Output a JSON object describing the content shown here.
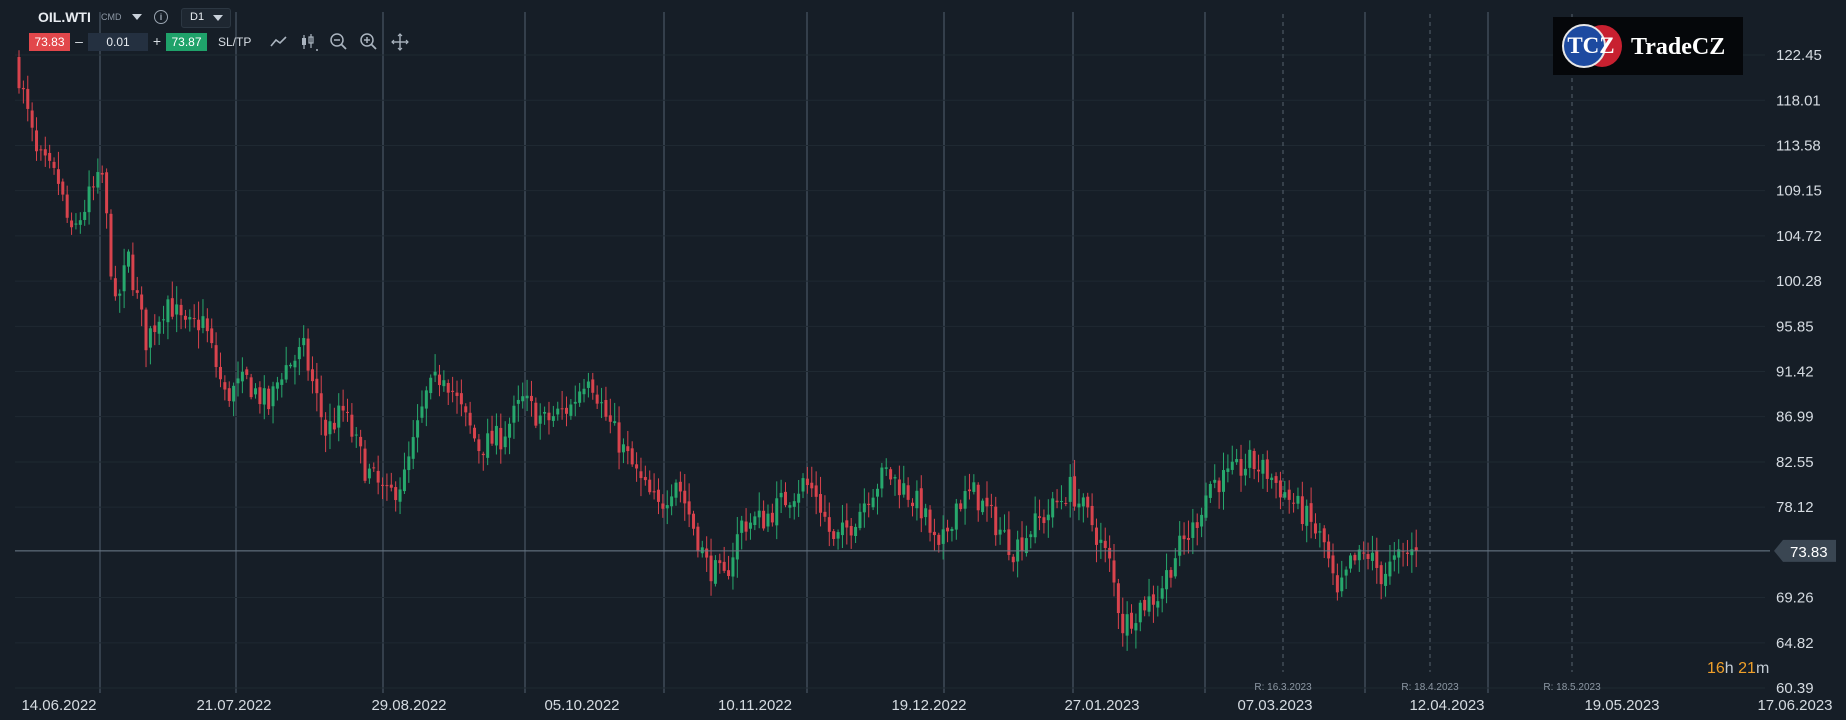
{
  "toolbar": {
    "symbol": "OIL.WTI",
    "symbol_type": "CMD",
    "timeframe": "D1",
    "sell_price": "73.83",
    "buy_price": "73.87",
    "volume": "0.01",
    "minus": "–",
    "plus": "+",
    "sltp_label": "SL/TP",
    "info_label": "i",
    "tools": [
      "line-chart-icon",
      "candles-icon",
      "zoom-out-icon",
      "zoom-in-icon",
      "crosshair-icon"
    ]
  },
  "logo": {
    "tcz": "TCZ",
    "name": "TradeCZ"
  },
  "timer": {
    "hours": "16",
    "h": "h",
    "minutes": "21",
    "m": "m"
  },
  "colors": {
    "background": "#161e27",
    "up": "#27a86d",
    "down": "#d8434d",
    "grid": "#2c3742",
    "price_line": "#6e7e8c"
  },
  "chart_data": {
    "type": "candlestick",
    "y_ticks": [
      "122.45",
      "118.01",
      "113.58",
      "109.15",
      "104.72",
      "100.28",
      "95.85",
      "91.42",
      "86.99",
      "82.55",
      "78.12",
      "73.83",
      "69.26",
      "64.82",
      "60.39"
    ],
    "ylim": [
      60.39,
      122.45
    ],
    "x_labels": [
      "14.06.2022",
      "21.07.2022",
      "29.08.2022",
      "05.10.2022",
      "10.11.2022",
      "19.12.2022",
      "27.01.2023",
      "07.03.2023",
      "12.04.2023",
      "19.05.2023",
      "17.06.2023"
    ],
    "current_price": "73.83",
    "rollover_markers": [
      "R: 16.3.2023",
      "R: 18.4.2023",
      "R: 18.5.2023"
    ],
    "price_path": [
      [
        0,
        120.5
      ],
      [
        4,
        112.5
      ],
      [
        9,
        110.0
      ],
      [
        12,
        104.5
      ],
      [
        16,
        108.5
      ],
      [
        19,
        110.5
      ],
      [
        22,
        97.5
      ],
      [
        25,
        102.5
      ],
      [
        29,
        94.5
      ],
      [
        34,
        98.5
      ],
      [
        38,
        95.5
      ],
      [
        42,
        96.5
      ],
      [
        47,
        89.0
      ],
      [
        52,
        90.5
      ],
      [
        57,
        88.0
      ],
      [
        60,
        91.5
      ],
      [
        65,
        93.5
      ],
      [
        70,
        85.5
      ],
      [
        74,
        87.5
      ],
      [
        79,
        82.0
      ],
      [
        84,
        79.0
      ],
      [
        88,
        81.0
      ],
      [
        93,
        89.0
      ],
      [
        97,
        91.5
      ],
      [
        101,
        87.5
      ],
      [
        105,
        84.0
      ],
      [
        110,
        85.0
      ],
      [
        115,
        88.5
      ],
      [
        120,
        86.5
      ],
      [
        126,
        88.0
      ],
      [
        130,
        91.5
      ],
      [
        134,
        87.0
      ],
      [
        137,
        84.5
      ],
      [
        142,
        80.5
      ],
      [
        146,
        78.0
      ],
      [
        150,
        81.0
      ],
      [
        153,
        77.5
      ],
      [
        157,
        72.5
      ],
      [
        161,
        71.0
      ],
      [
        165,
        76.5
      ],
      [
        170,
        77.0
      ],
      [
        174,
        78.5
      ],
      [
        179,
        80.5
      ],
      [
        182,
        79.5
      ],
      [
        186,
        74.5
      ],
      [
        190,
        76.5
      ],
      [
        194,
        79.5
      ],
      [
        198,
        81.5
      ],
      [
        202,
        80.0
      ],
      [
        206,
        78.0
      ],
      [
        210,
        73.5
      ],
      [
        214,
        78.5
      ],
      [
        218,
        79.5
      ],
      [
        223,
        76.5
      ],
      [
        227,
        74.0
      ],
      [
        231,
        76.0
      ],
      [
        236,
        78.0
      ],
      [
        240,
        80.0
      ],
      [
        245,
        76.5
      ],
      [
        249,
        72.5
      ],
      [
        252,
        66.5
      ],
      [
        256,
        68.5
      ],
      [
        260,
        69.5
      ],
      [
        264,
        73.5
      ],
      [
        268,
        76.0
      ],
      [
        272,
        80.5
      ],
      [
        276,
        81.0
      ],
      [
        281,
        82.5
      ],
      [
        285,
        81.5
      ],
      [
        289,
        79.5
      ],
      [
        294,
        77.0
      ],
      [
        298,
        74.5
      ],
      [
        301,
        69.0
      ],
      [
        304,
        72.5
      ],
      [
        308,
        73.5
      ],
      [
        311,
        71.5
      ],
      [
        315,
        73.0
      ],
      [
        319,
        74.0
      ]
    ]
  }
}
